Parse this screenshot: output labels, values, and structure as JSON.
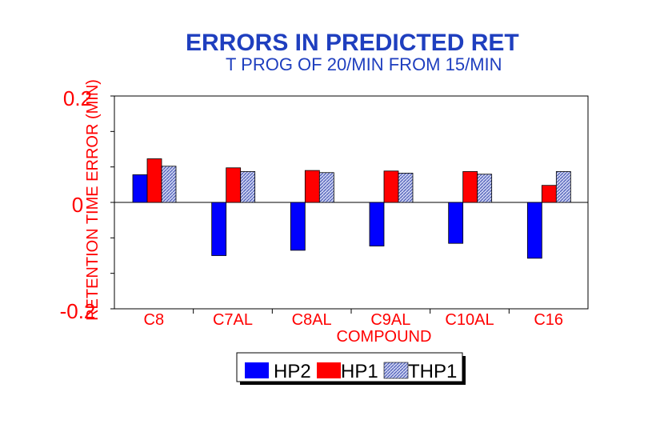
{
  "chart_data": {
    "type": "bar",
    "title": "ERRORS IN PREDICTED RET",
    "subtitle": "T PROG OF 20/MIN FROM 15/MIN",
    "xlabel": "COMPOUND",
    "ylabel": "RETENTION TIME ERROR (MIN)",
    "ylim": [
      -0.2,
      0.2
    ],
    "yticks": [
      -0.2,
      0,
      0.2
    ],
    "ytick_labels": [
      "-0.2",
      "0",
      "0.2"
    ],
    "categories": [
      "C8",
      "C7AL",
      "C8AL",
      "C9AL",
      "C10AL",
      "C16"
    ],
    "series": [
      {
        "name": "HP2",
        "values": [
          0.052,
          -0.1,
          -0.09,
          -0.082,
          -0.077,
          -0.105
        ]
      },
      {
        "name": "HP1",
        "values": [
          0.082,
          0.065,
          0.06,
          0.059,
          0.058,
          0.032
        ]
      },
      {
        "name": "THP1",
        "values": [
          0.068,
          0.058,
          0.056,
          0.055,
          0.053,
          0.058
        ]
      }
    ],
    "legend_placement": "bottom-center",
    "grid": false,
    "colors": {
      "HP2": "#0000ff",
      "HP1": "#ff0000",
      "THP1": "#9aa6e0",
      "text_red": "#ff0000",
      "title_blue": "#1f3fbf"
    }
  }
}
